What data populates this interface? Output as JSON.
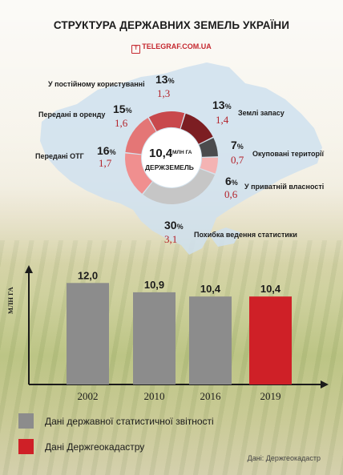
{
  "header": {
    "title": "СТРУКТУРА ДЕРЖАВНИХ ЗЕМЕЛЬ УКРАЇНИ",
    "source_site": "TELEGRAF.COM.UA",
    "source_icon": "telegraf-logo-icon"
  },
  "donut": {
    "center_value": "10,4",
    "center_unit": "МЛН ГА",
    "center_caption": "ДЕРЖЗЕМЕЛЬ",
    "segments": [
      {
        "label": "Землі запасу",
        "percent": "13",
        "value": "1,4",
        "share": 13,
        "color": "#7c1e22"
      },
      {
        "label": "Окуповані території",
        "percent": "7",
        "value": "0,7",
        "share": 7,
        "color": "#4b4b4d"
      },
      {
        "label": "У приватній власності",
        "percent": "6",
        "value": "0,6",
        "share": 6,
        "color": "#f4b3b3"
      },
      {
        "label": "Похибка ведення статистики",
        "percent": "30",
        "value": "3,1",
        "share": 30,
        "color": "#c6c6c6"
      },
      {
        "label": "Передані ОТГ",
        "percent": "16",
        "value": "1,7",
        "share": 16,
        "color": "#f08f8f"
      },
      {
        "label": "Передані в оренду",
        "percent": "15",
        "value": "1,6",
        "share": 15,
        "color": "#e47676"
      },
      {
        "label": "У постійному користуванні",
        "percent": "13",
        "value": "1,3",
        "share": 13,
        "color": "#c8484c"
      }
    ]
  },
  "chart_data": {
    "type": "bar",
    "categories": [
      "2002",
      "2010",
      "2016",
      "2019"
    ],
    "values": [
      12.0,
      10.9,
      10.4,
      10.4
    ],
    "value_labels": [
      "12,0",
      "10,9",
      "10,4",
      "10,4"
    ],
    "sources": [
      "state",
      "state",
      "state",
      "cadastre"
    ],
    "ylabel": "МЛН ГА",
    "ylim": [
      0,
      12.5
    ],
    "colors": {
      "state": "#8c8c8c",
      "cadastre": "#cf2027"
    }
  },
  "legend": {
    "items": [
      {
        "label": "Дані державної статистичної звітності",
        "color": "#8c8c8c"
      },
      {
        "label": "Дані Держгеокадастру",
        "color": "#cf2027"
      }
    ]
  },
  "footer": {
    "source": "Дані: Держгеокадастр"
  }
}
